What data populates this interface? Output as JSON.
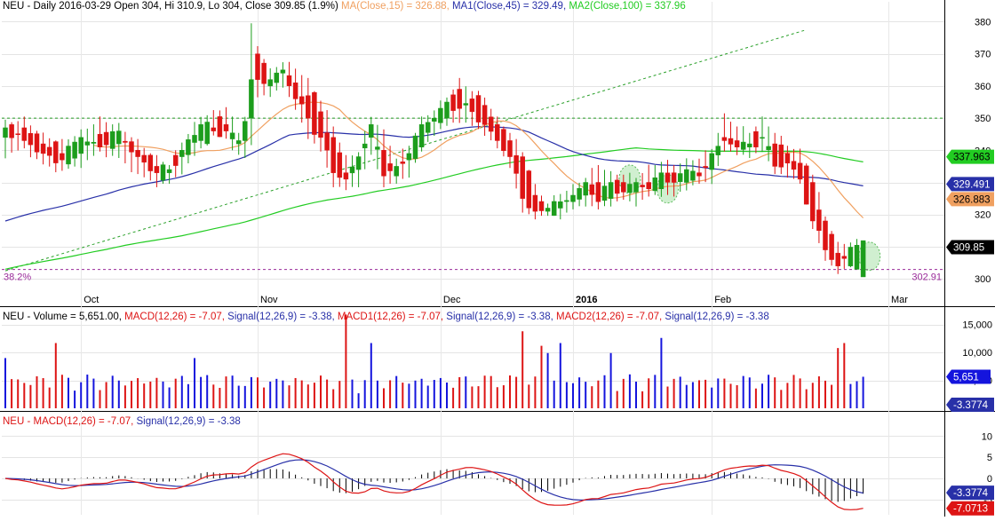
{
  "window": {
    "title": "NEU - Daily 2016-03-29 Open 304, Hi 310.9, Lo 304, Close 309.85 (1.9%)"
  },
  "colors": {
    "up": "#1c9d1c",
    "down": "#dd1414",
    "ma15": "#f0a060",
    "ma45": "#2830a8",
    "ma100": "#22cc22",
    "volume_up": "#1414dd",
    "volume_down": "#dd1414",
    "macd": "#dd1414",
    "signal": "#2830a8",
    "hist": "#000000",
    "fib": "#9a2a9a",
    "trendline": "#2aa02a"
  },
  "price_panel": {
    "legend": [
      {
        "text": "NEU - Daily 2016-03-29 Open 304, Hi 310.9, Lo 304, Close 309.85 (1.9%)",
        "color": "#000000"
      },
      {
        "text": "MA(Close,15) = 326.88,",
        "color": "#f0a060"
      },
      {
        "text": "MA1(Close,45) = 329.49,",
        "color": "#2830a8"
      },
      {
        "text": "MA2(Close,100) = 337.96",
        "color": "#22cc22"
      }
    ],
    "y_ticks": [
      "380",
      "370",
      "360",
      "350",
      "340",
      "330",
      "320",
      "310",
      "300"
    ],
    "y_tick_values": [
      380,
      370,
      360,
      350,
      340,
      330,
      320,
      310,
      300
    ],
    "ylim": [
      297,
      384
    ],
    "value_badges": [
      {
        "label": "337.963",
        "value": 337.963,
        "color": "#22cc22",
        "text_color": "#000000"
      },
      {
        "label": "329.491",
        "value": 329.491,
        "color": "#2830a8",
        "text_color": "#ffffff"
      },
      {
        "label": "326.883",
        "value": 326.883,
        "color": "#f0a060",
        "text_color": "#000000"
      },
      {
        "label": "309.85",
        "value": 309.85,
        "color": "#000000",
        "text_color": "#ffffff"
      }
    ],
    "fib_label": "38.2%",
    "fib_value_label": "302.91",
    "fib_value": 302.91,
    "horizontal_line_value": 350
  },
  "x_axis": {
    "labels": [
      "Oct",
      "Nov",
      "Dec",
      "2016",
      "Feb",
      "Mar"
    ],
    "label_bar_index": [
      12,
      40,
      69,
      90,
      112,
      140
    ]
  },
  "volume_panel": {
    "legend": [
      {
        "text": "NEU - Volume = 5,651.00,",
        "color": "#000000"
      },
      {
        "text": "MACD(12,26) = -7.07,",
        "color": "#dd1414"
      },
      {
        "text": "Signal(12,26,9) = -3.38,",
        "color": "#2830a8"
      },
      {
        "text": "MACD1(12,26) = -7.07,",
        "color": "#dd1414"
      },
      {
        "text": "Signal(12,26,9) = -3.38,",
        "color": "#2830a8"
      },
      {
        "text": "MACD2(12,26) = -7.07,",
        "color": "#dd1414"
      },
      {
        "text": "Signal(12,26,9) = -3.38",
        "color": "#2830a8"
      }
    ],
    "y_ticks": [
      "15,000",
      "10,000",
      "5,000"
    ],
    "y_tick_values": [
      15000,
      10000,
      5000
    ],
    "ylim": [
      0,
      17500
    ],
    "value_badges": [
      {
        "label": "5,651",
        "value": 5651,
        "color": "#1414dd",
        "text_color": "#ffffff"
      },
      {
        "label": "-3.3774",
        "value": 1000,
        "color": "#2830a8",
        "text_color": "#ffffff"
      }
    ]
  },
  "macd_panel": {
    "legend": [
      {
        "text": "NEU - MACD(12,26) = -7.07,",
        "color": "#dd1414"
      },
      {
        "text": "Signal(12,26,9) = -3.38",
        "color": "#2830a8"
      }
    ],
    "y_ticks": [
      "10",
      "5",
      "0",
      "-5"
    ],
    "y_tick_values": [
      10,
      5,
      0,
      -5
    ],
    "ylim": [
      -8.6,
      12.8
    ],
    "value_badges": [
      {
        "label": "-3.3774",
        "value": -3.3774,
        "color": "#2830a8",
        "text_color": "#ffffff"
      },
      {
        "label": "-7.0713",
        "value": -7.0713,
        "color": "#dd1414",
        "text_color": "#ffffff"
      }
    ]
  },
  "chart_data": {
    "type": "candlestick",
    "title": "NEU - Daily",
    "ohlc_anchors": [
      [
        0,
        344,
        348,
        339,
        347
      ],
      [
        3,
        347,
        349,
        341,
        343
      ],
      [
        6,
        342,
        344,
        336,
        339
      ],
      [
        9,
        339,
        342,
        334,
        337
      ],
      [
        12,
        339,
        345,
        336,
        344
      ],
      [
        15,
        345,
        349,
        340,
        341
      ],
      [
        18,
        342,
        347,
        338,
        346
      ],
      [
        21,
        340,
        342,
        333,
        338
      ],
      [
        24,
        335,
        337,
        330,
        333
      ],
      [
        26,
        333,
        335,
        330,
        334
      ],
      [
        28,
        338,
        342,
        334,
        340
      ],
      [
        31,
        343,
        350,
        341,
        348
      ],
      [
        33,
        347,
        351,
        345,
        346
      ],
      [
        35,
        348,
        353,
        344,
        346
      ],
      [
        37,
        342,
        345,
        339,
        343
      ],
      [
        38,
        343,
        350,
        338,
        349
      ],
      [
        39,
        350,
        378,
        342,
        362
      ],
      [
        40,
        370,
        372,
        358,
        362
      ],
      [
        42,
        360,
        364,
        357,
        362
      ],
      [
        44,
        364,
        367,
        361,
        365
      ],
      [
        46,
        361,
        365,
        353,
        356
      ],
      [
        48,
        357,
        361,
        345,
        350
      ],
      [
        50,
        352,
        355,
        340,
        344
      ],
      [
        52,
        344,
        347,
        330,
        333
      ],
      [
        54,
        333,
        337,
        328,
        331
      ],
      [
        56,
        334,
        339,
        330,
        338
      ],
      [
        58,
        344,
        350,
        339,
        348
      ],
      [
        60,
        340,
        345,
        330,
        332
      ],
      [
        62,
        332,
        337,
        330,
        335
      ],
      [
        64,
        337,
        341,
        333,
        339
      ],
      [
        66,
        341,
        349,
        340,
        348
      ],
      [
        68,
        349,
        352,
        346,
        350
      ],
      [
        70,
        350,
        356,
        348,
        355
      ],
      [
        72,
        359,
        361,
        350,
        353
      ],
      [
        74,
        356,
        358,
        348,
        352
      ],
      [
        76,
        354,
        356,
        346,
        348
      ],
      [
        78,
        348,
        349,
        341,
        343
      ],
      [
        80,
        343,
        345,
        336,
        338
      ],
      [
        82,
        338,
        339,
        321,
        325
      ],
      [
        84,
        326,
        328,
        320,
        321
      ],
      [
        86,
        321,
        323,
        320,
        322
      ],
      [
        88,
        322,
        326,
        320,
        324
      ],
      [
        90,
        324,
        328,
        322,
        326
      ],
      [
        92,
        326,
        331,
        324,
        330
      ],
      [
        94,
        330,
        335,
        322,
        324
      ],
      [
        96,
        325,
        332,
        324,
        330
      ],
      [
        98,
        330,
        332,
        325,
        327
      ],
      [
        100,
        327,
        331,
        324,
        330
      ],
      [
        102,
        330,
        334,
        326,
        328
      ],
      [
        104,
        328,
        336,
        327,
        333
      ],
      [
        106,
        333,
        335,
        326,
        330
      ],
      [
        108,
        330,
        336,
        329,
        334
      ],
      [
        110,
        333,
        337,
        330,
        332
      ],
      [
        112,
        334,
        340,
        331,
        339
      ],
      [
        114,
        344,
        350,
        340,
        343
      ],
      [
        116,
        343,
        347,
        340,
        341
      ],
      [
        118,
        341,
        345,
        338,
        342
      ],
      [
        120,
        344,
        349,
        341,
        344
      ],
      [
        122,
        342,
        345,
        333,
        335
      ],
      [
        124,
        339,
        341,
        333,
        336
      ],
      [
        126,
        336,
        339,
        330,
        331
      ],
      [
        128,
        330,
        332,
        317,
        318
      ],
      [
        130,
        318,
        319,
        306,
        309
      ],
      [
        132,
        308,
        310,
        303,
        304
      ],
      [
        134,
        304,
        310.9,
        304,
        309.85
      ]
    ],
    "series": [
      {
        "name": "MA(Close,15)",
        "last": 326.88
      },
      {
        "name": "MA1(Close,45)",
        "last": 329.49
      },
      {
        "name": "MA2(Close,100)",
        "last": 337.96
      }
    ],
    "volume_last": 5651,
    "macd_last": -7.07,
    "signal_last": -3.38,
    "y_label_price": "",
    "x_labels": [
      "Oct",
      "Nov",
      "Dec",
      "2016",
      "Feb",
      "Mar"
    ]
  }
}
